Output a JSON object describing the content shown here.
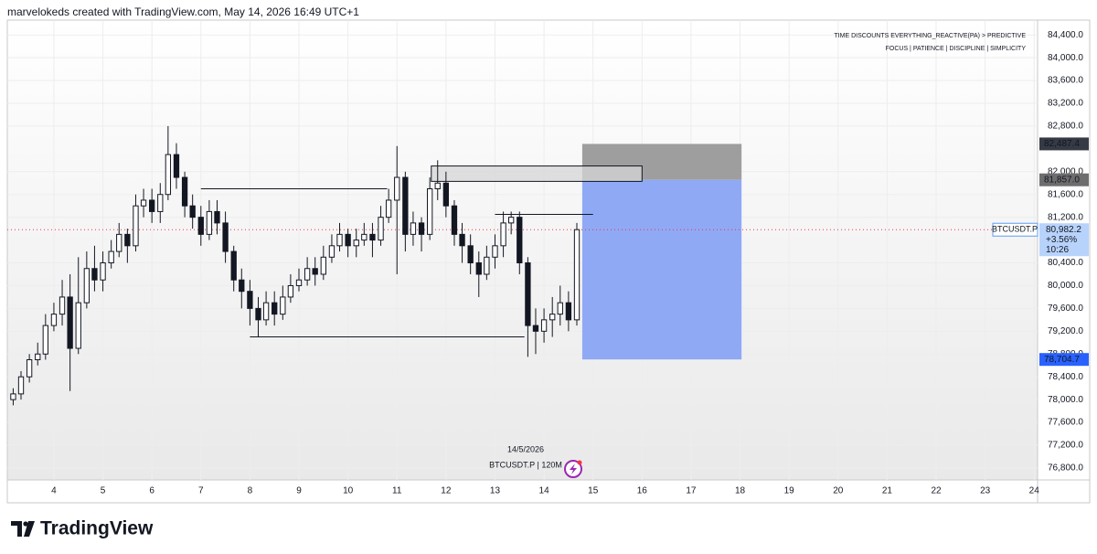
{
  "header": "marvelokeds created with TradingView.com, May 14, 2026 16:49 UTC+1",
  "brand": "TradingView",
  "chart_data": {
    "type": "candlestick",
    "symbol_info": "BTCUSDT.P | 120M",
    "date_label": "14/5/2026",
    "notes": [
      {
        "text": "TIME DISCOUNTS EVERYTHING_REACTIVE(PA) > PREDICTIVE",
        "color": "#222222"
      },
      {
        "text": "FOCUS | PATIENCE | DISCIPLINE | SIMPLICITY",
        "color": "#4caf50"
      }
    ],
    "x": [
      3.17,
      3.33,
      3.5,
      3.67,
      3.83,
      4,
      4.17,
      4.33,
      4.5,
      4.67,
      4.83,
      5,
      5.17,
      5.33,
      5.5,
      5.67,
      5.83,
      6,
      6.17,
      6.33,
      6.5,
      6.67,
      6.83,
      7,
      7.17,
      7.33,
      7.5,
      7.67,
      7.83,
      8,
      8.17,
      8.33,
      8.5,
      8.67,
      8.83,
      9,
      9.17,
      9.33,
      9.5,
      9.67,
      9.83,
      10,
      10.17,
      10.33,
      10.5,
      10.67,
      10.83,
      11,
      11.17,
      11.33,
      11.5,
      11.67,
      11.83,
      12,
      12.17,
      12.33,
      12.5,
      12.67,
      12.83,
      13,
      13.17,
      13.33,
      13.5,
      13.67,
      13.83,
      14,
      14.17,
      14.33,
      14.5,
      14.67
    ],
    "open": [
      78000,
      78100,
      78400,
      78700,
      78800,
      79300,
      79500,
      79800,
      78900,
      79700,
      80300,
      80100,
      80400,
      80600,
      80900,
      80700,
      81400,
      81500,
      81300,
      81600,
      82300,
      81900,
      81400,
      81200,
      80900,
      81300,
      81100,
      80600,
      80100,
      79900,
      79600,
      79400,
      79700,
      79500,
      79800,
      80000,
      80100,
      80300,
      80200,
      80500,
      80700,
      80900,
      80700,
      80800,
      80900,
      80800,
      81200,
      81500,
      81900,
      80900,
      81100,
      80900,
      81700,
      81800,
      81400,
      80900,
      80700,
      80400,
      80200,
      80500,
      80700,
      81100,
      81200,
      80400,
      79300,
      79200,
      79400,
      79500,
      79700,
      79400
    ],
    "high": [
      78200,
      78500,
      78800,
      79000,
      79500,
      79700,
      80100,
      80200,
      80500,
      80600,
      80700,
      80600,
      80800,
      81100,
      81000,
      81600,
      81700,
      81700,
      81800,
      82800,
      82500,
      82000,
      81600,
      81400,
      81500,
      81500,
      81300,
      80700,
      80300,
      80100,
      79800,
      79900,
      79900,
      80000,
      80200,
      80300,
      80500,
      80500,
      80700,
      80900,
      81100,
      81000,
      81000,
      81100,
      81100,
      81400,
      81700,
      82450,
      82000,
      81300,
      81200,
      81900,
      82200,
      82000,
      81500,
      81100,
      80900,
      80600,
      80700,
      80900,
      81300,
      81300,
      81300,
      80500,
      79600,
      79600,
      79800,
      80000,
      79900,
      81100
    ],
    "low": [
      77900,
      78000,
      78300,
      78600,
      78700,
      79200,
      79300,
      78150,
      78800,
      79600,
      79900,
      79900,
      80300,
      80500,
      80400,
      80600,
      81200,
      81100,
      81100,
      81500,
      81700,
      81200,
      81000,
      80700,
      80800,
      80900,
      80400,
      79900,
      79600,
      79300,
      79100,
      79300,
      79300,
      79400,
      79700,
      79900,
      80000,
      80000,
      80100,
      80400,
      80600,
      80500,
      80500,
      80700,
      80500,
      80700,
      81100,
      80200,
      80600,
      80700,
      80600,
      80800,
      81500,
      81200,
      80700,
      80400,
      80200,
      79800,
      80100,
      80300,
      80500,
      80900,
      80200,
      78750,
      78800,
      79000,
      79100,
      79300,
      79200,
      79300
    ],
    "close": [
      78100,
      78400,
      78700,
      78800,
      79300,
      79500,
      79800,
      78900,
      79700,
      80300,
      80100,
      80400,
      80600,
      80900,
      80700,
      81400,
      81500,
      81300,
      81600,
      82300,
      81900,
      81400,
      81200,
      80900,
      81300,
      81100,
      80600,
      80100,
      79900,
      79600,
      79400,
      79700,
      79500,
      79800,
      80000,
      80100,
      80300,
      80200,
      80500,
      80700,
      80900,
      80700,
      80800,
      80900,
      80800,
      81200,
      81500,
      81900,
      80900,
      81100,
      80900,
      81700,
      81800,
      81400,
      80900,
      80700,
      80400,
      80200,
      80500,
      80700,
      81100,
      81200,
      80400,
      79300,
      79200,
      79400,
      79500,
      79700,
      79400,
      80982.2
    ],
    "up_color": "#ffffff",
    "down_color": "#131722",
    "wick_color": "#131722",
    "xlim": [
      3.05,
      24.07
    ],
    "xticks": [
      4,
      5,
      6,
      7,
      8,
      9,
      10,
      11,
      12,
      13,
      14,
      15,
      16,
      17,
      18,
      19,
      20,
      21,
      22,
      23,
      24
    ],
    "ylim": [
      76590,
      84660
    ],
    "yticks": [
      {
        "value": 84400,
        "label": "84,400.0"
      },
      {
        "value": 84000,
        "label": "84,000.0"
      },
      {
        "value": 83600,
        "label": "83,600.0"
      },
      {
        "value": 83200,
        "label": "83,200.0"
      },
      {
        "value": 82800,
        "label": "82,800.0"
      },
      {
        "value": 82000,
        "label": "82,000.0"
      },
      {
        "value": 81600,
        "label": "81,600.0"
      },
      {
        "value": 81200,
        "label": "81,200.0"
      },
      {
        "value": 80400,
        "label": "80,400.0"
      },
      {
        "value": 80000,
        "label": "80,000.0"
      },
      {
        "value": 79600,
        "label": "79,600.0"
      },
      {
        "value": 79200,
        "label": "79,200.0"
      },
      {
        "value": 78800,
        "label": "78,800.0"
      },
      {
        "value": 78400,
        "label": "78,400.0"
      },
      {
        "value": 78000,
        "label": "78,000.0"
      },
      {
        "value": 77600,
        "label": "77,600.0"
      },
      {
        "value": 77200,
        "label": "77,200.0"
      },
      {
        "value": 76800,
        "label": "76,800.0"
      }
    ],
    "grid": true,
    "levels": [
      {
        "value": 81700,
        "from": 7.0,
        "to": 10.8
      },
      {
        "value": 79100,
        "from": 8.0,
        "to": 13.6
      },
      {
        "value": 81250,
        "from": 13.0,
        "to": 15.0
      }
    ],
    "zones": [
      {
        "top": 82100,
        "bottom": 81830,
        "from": 11.7,
        "to": 16.0,
        "color": "#d5d5d5"
      }
    ],
    "position": {
      "start": 14.78,
      "end": 18.03,
      "stop": {
        "value": 82487.4,
        "label": "82,487.4",
        "color": "#9e9e9e",
        "label_color": "#363a45"
      },
      "entry": {
        "value": 81857.0,
        "label": "81,857.0",
        "label_color": "#6d6d6d"
      },
      "target": {
        "value": 78704.7,
        "label": "78,704.7",
        "color": "#8fa9f5",
        "label_color": "#2962ff"
      }
    },
    "last": {
      "value": 80982.2,
      "label": "80,982.2",
      "change": "+3.56%",
      "countdown": "10:26",
      "symbol": "BTCUSDT.P",
      "color": "#5b9cf6",
      "line_color": "#f23645"
    }
  }
}
